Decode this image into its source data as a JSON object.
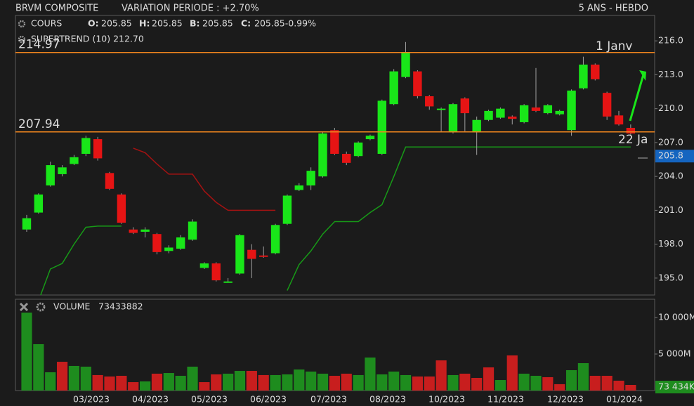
{
  "header": {
    "title": "BRVM COMPOSITE",
    "variation": "VARIATION PERIODE : +2.70%",
    "period": "5 ANS - HEBDO"
  },
  "legend": {
    "series": "COURS",
    "o_label": "O:",
    "o": 205.85,
    "h_label": "H:",
    "h": 205.85,
    "b_label": "B:",
    "b": 205.85,
    "c_label": "C:",
    "c": "205.85-0.99%",
    "indicator": "SUPERTREND (10) 212.70"
  },
  "x_labels": [
    "03/2023",
    "04/2023",
    "05/2023",
    "06/2023",
    "07/2023",
    "08/2023",
    "10/2023",
    "11/2023",
    "12/2023",
    "01/2024"
  ],
  "chart_data": [
    {
      "type": "candlestick",
      "up_color": "#19e619",
      "down_color": "#e61414",
      "open": [
        199.3,
        200.8,
        203.2,
        204.2,
        205.1,
        206.0,
        207.3,
        204.3,
        202.4,
        199.3,
        199.1,
        198.9,
        197.4,
        197.6,
        198.4,
        195.9,
        196.3,
        194.6,
        195.4,
        197.5,
        197.0,
        197.2,
        199.8,
        202.8,
        203.2,
        204.0,
        208.1,
        206.0,
        205.8,
        207.3,
        206.0,
        210.4,
        212.8,
        213.3,
        211.1,
        209.9,
        207.9,
        210.9,
        207.9,
        209.0,
        209.2,
        209.3,
        208.8,
        210.1,
        209.6,
        209.5,
        208.1,
        211.8,
        213.9,
        211.4,
        209.4,
        208.3
      ],
      "high": [
        200.6,
        202.5,
        205.3,
        205.0,
        205.9,
        207.6,
        207.5,
        204.4,
        202.5,
        199.5,
        199.5,
        199.0,
        197.9,
        198.8,
        200.2,
        196.4,
        196.4,
        195.0,
        198.9,
        198.0,
        197.8,
        199.8,
        202.4,
        203.4,
        204.8,
        207.9,
        208.3,
        206.2,
        207.1,
        207.7,
        210.8,
        213.5,
        215.9,
        213.4,
        211.2,
        210.1,
        210.5,
        211.0,
        209.3,
        209.9,
        210.1,
        209.4,
        210.4,
        213.6,
        210.4,
        209.9,
        211.7,
        214.6,
        214.0,
        211.5,
        209.8,
        208.6
      ],
      "low": [
        199.1,
        200.7,
        203.1,
        204.0,
        205.0,
        205.8,
        205.4,
        202.8,
        199.8,
        198.9,
        198.6,
        197.1,
        197.2,
        197.5,
        198.3,
        195.8,
        194.7,
        194.6,
        195.3,
        195.0,
        196.8,
        197.1,
        199.7,
        202.7,
        202.8,
        203.9,
        205.9,
        205.0,
        205.7,
        207.2,
        205.9,
        210.3,
        212.7,
        210.9,
        209.9,
        207.9,
        207.8,
        208.0,
        205.9,
        208.9,
        209.1,
        208.6,
        208.7,
        209.7,
        209.5,
        209.4,
        207.6,
        211.7,
        212.5,
        209.0,
        208.5,
        207.7
      ],
      "close": [
        200.3,
        202.4,
        205.0,
        204.8,
        205.7,
        207.4,
        205.6,
        202.9,
        199.9,
        199.0,
        199.3,
        197.3,
        197.7,
        198.6,
        200.0,
        196.3,
        194.8,
        194.7,
        198.8,
        196.7,
        196.9,
        199.7,
        202.3,
        203.2,
        204.5,
        207.8,
        206.0,
        205.2,
        207.0,
        207.6,
        210.7,
        213.3,
        215.0,
        211.1,
        210.2,
        210.0,
        210.4,
        209.6,
        209.0,
        209.8,
        210.0,
        209.1,
        210.3,
        209.8,
        210.3,
        209.8,
        211.6,
        213.9,
        212.6,
        209.3,
        208.6,
        207.8
      ],
      "supertrend": {
        "up": {
          "color": "#179a17",
          "values": [
            null,
            193.0,
            195.8,
            196.3,
            198.0,
            199.5,
            199.6,
            199.6,
            199.6,
            null,
            null,
            null,
            null,
            null,
            null,
            null,
            null,
            null,
            null,
            null,
            null,
            null,
            193.9,
            196.2,
            197.4,
            198.9,
            200.0,
            200.0,
            200.0,
            200.8,
            201.5,
            204.0,
            206.6,
            206.6,
            206.6,
            206.6,
            206.6,
            206.6,
            206.6,
            206.6,
            206.6,
            206.6,
            206.6,
            206.6,
            206.6,
            206.6,
            206.6,
            206.6,
            206.6,
            206.6,
            206.6,
            206.6
          ]
        },
        "down": {
          "color": "#a41212",
          "values": [
            null,
            null,
            null,
            null,
            null,
            null,
            null,
            null,
            null,
            206.5,
            206.1,
            205.1,
            204.2,
            204.2,
            204.2,
            202.7,
            201.7,
            201.0,
            201.0,
            201.0,
            201.0,
            201.0,
            null,
            null,
            null,
            null,
            null,
            null,
            null,
            null,
            null,
            null,
            null,
            null,
            null,
            null,
            null,
            null,
            null,
            null,
            null,
            null,
            null,
            null,
            null,
            null,
            null,
            null,
            null,
            null,
            null,
            null
          ]
        }
      },
      "hlines": {
        "color": "#f0851e",
        "values": [
          214.97,
          207.94
        ]
      },
      "annotations": {
        "color": "#e61414",
        "items": [
          "1 Janv",
          "22 Ja"
        ]
      },
      "last_price": {
        "value": 205.8,
        "label": "205.8",
        "color": "#1565c0"
      },
      "ylim": [
        193.5,
        218.25
      ],
      "yticks": [
        {
          "value": 216,
          "label": "216.0"
        },
        {
          "value": 213,
          "label": "213.0"
        },
        {
          "value": 210,
          "label": "210.0"
        },
        {
          "value": 207,
          "label": "207.0"
        },
        {
          "value": 204,
          "label": "204.0"
        },
        {
          "value": 201,
          "label": "201.0"
        },
        {
          "value": 198,
          "label": "198.0"
        },
        {
          "value": 195,
          "label": "195.0"
        }
      ]
    },
    {
      "type": "bar",
      "title": "VOLUME",
      "total": 73433882,
      "last_label": "73 434K",
      "last_color": "#1e8c1e",
      "values": [
        10670,
        6350,
        2500,
        3940,
        3370,
        3270,
        2120,
        1920,
        2020,
        1150,
        1250,
        2310,
        2400,
        2020,
        3270,
        1150,
        2210,
        2310,
        2690,
        2690,
        2120,
        2120,
        2210,
        2880,
        2600,
        2310,
        2020,
        2310,
        2120,
        4520,
        2210,
        2600,
        2120,
        1920,
        1920,
        4130,
        2120,
        2310,
        1730,
        3170,
        1440,
        4810,
        2310,
        2020,
        1830,
        870,
        2790,
        3750,
        2020,
        2020,
        1350,
        770
      ],
      "colors": [
        "#1e8c1e",
        "#1e8c1e",
        "#1e8c1e",
        "#c81e1e",
        "#1e8c1e",
        "#1e8c1e",
        "#c81e1e",
        "#c81e1e",
        "#c81e1e",
        "#c81e1e",
        "#1e8c1e",
        "#c81e1e",
        "#1e8c1e",
        "#1e8c1e",
        "#1e8c1e",
        "#c81e1e",
        "#c81e1e",
        "#1e8c1e",
        "#1e8c1e",
        "#c81e1e",
        "#c81e1e",
        "#1e8c1e",
        "#1e8c1e",
        "#1e8c1e",
        "#1e8c1e",
        "#1e8c1e",
        "#c81e1e",
        "#c81e1e",
        "#1e8c1e",
        "#1e8c1e",
        "#1e8c1e",
        "#1e8c1e",
        "#1e8c1e",
        "#c81e1e",
        "#c81e1e",
        "#c81e1e",
        "#1e8c1e",
        "#c81e1e",
        "#c81e1e",
        "#c81e1e",
        "#1e8c1e",
        "#c81e1e",
        "#1e8c1e",
        "#1e8c1e",
        "#c81e1e",
        "#c81e1e",
        "#1e8c1e",
        "#1e8c1e",
        "#c81e1e",
        "#c81e1e",
        "#c81e1e",
        "#c81e1e"
      ],
      "ylim": [
        0,
        12500
      ],
      "yticks": [
        {
          "value": 10000,
          "label": "10 000M"
        },
        {
          "value": 5000,
          "label": "5 000M"
        }
      ]
    }
  ]
}
